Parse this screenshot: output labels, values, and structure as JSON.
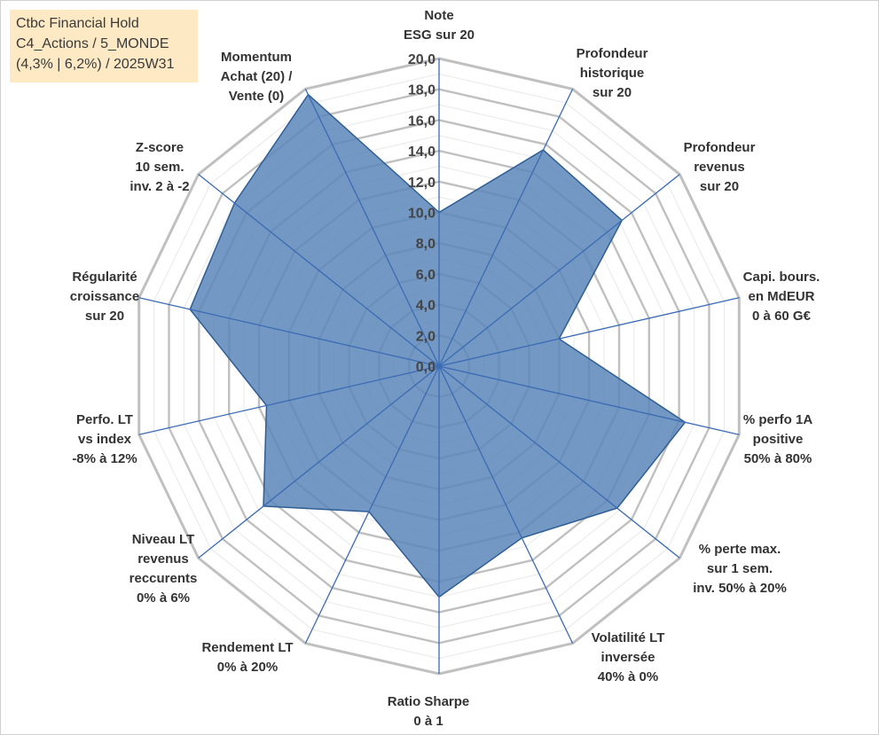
{
  "info_box": {
    "lines": [
      "Ctbc Financial Hold",
      "C4_Actions / 5_MONDE",
      "(4,3% | 6,2%) / 2025W31"
    ]
  },
  "chart_data": {
    "type": "radar",
    "rmin": 0,
    "rmax": 20,
    "tick_step": 2,
    "tick_labels": [
      "0,0",
      "2,0",
      "4,0",
      "6,0",
      "8,0",
      "10,0",
      "12,0",
      "14,0",
      "16,0",
      "18,0",
      "20,0"
    ],
    "axes": [
      {
        "lines": [
          "Note",
          "ESG sur 20"
        ]
      },
      {
        "lines": [
          "Profondeur",
          "historique",
          "sur 20"
        ]
      },
      {
        "lines": [
          "Profondeur",
          "revenus",
          "sur 20"
        ]
      },
      {
        "lines": [
          "Capi. bours.",
          "en MdEUR",
          "0 à 60 G€"
        ]
      },
      {
        "lines": [
          "% perfo 1A",
          "positive",
          "50% à 80%"
        ]
      },
      {
        "lines": [
          "% perte max.",
          "sur 1 sem.",
          "inv. 50% à 20%"
        ]
      },
      {
        "lines": [
          "Volatilité LT",
          "inversée",
          "40% à 0%"
        ]
      },
      {
        "lines": [
          "Ratio Sharpe",
          "0 à 1"
        ]
      },
      {
        "lines": [
          "Rendement LT",
          "0% à 20%"
        ]
      },
      {
        "lines": [
          "Niveau LT",
          "revenus",
          "reccurents",
          "0% à 6%"
        ]
      },
      {
        "lines": [
          "Perfo. LT",
          "vs index",
          "-8% à 12%"
        ]
      },
      {
        "lines": [
          "Régularité",
          "croissance",
          "sur 20"
        ]
      },
      {
        "lines": [
          "Z-score",
          "10 sem.",
          "inv. 2 à -2"
        ]
      },
      {
        "lines": [
          "Momentum",
          "Achat (20) /",
          "Vente (0)"
        ]
      }
    ],
    "values": [
      10.0,
      15.6,
      15.2,
      8.0,
      16.4,
      14.8,
      12.4,
      15.0,
      10.5,
      14.6,
      11.5,
      16.6,
      17.0,
      19.6
    ],
    "colors": {
      "fill": "#5a86b8",
      "stroke": "#2e5e95",
      "spoke": "#3b6bb5",
      "grid": "#c0c0c0",
      "minor_grid": "#e8e8e8"
    }
  }
}
